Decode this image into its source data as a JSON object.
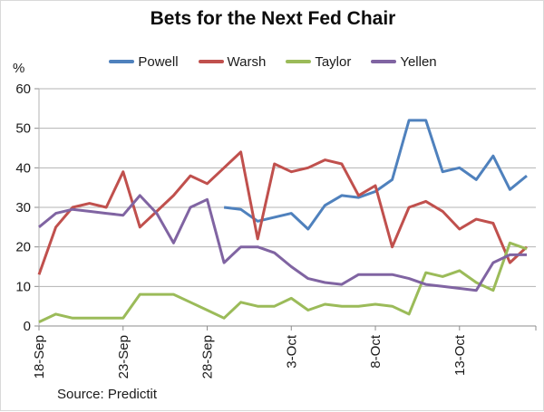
{
  "title": "Bets for the Next Fed Chair",
  "y_axis_unit": "%",
  "source": "Source: Predictit",
  "colors": {
    "grid": "#b3b3b3",
    "axis": "#8c8c8c",
    "text": "#1a1a1a"
  },
  "chart_data": {
    "type": "line",
    "x": [
      "18-Sep",
      "19-Sep",
      "20-Sep",
      "21-Sep",
      "22-Sep",
      "23-Sep",
      "24-Sep",
      "25-Sep",
      "26-Sep",
      "27-Sep",
      "28-Sep",
      "29-Sep",
      "30-Sep",
      "1-Oct",
      "2-Oct",
      "3-Oct",
      "4-Oct",
      "5-Oct",
      "6-Oct",
      "7-Oct",
      "8-Oct",
      "9-Oct",
      "10-Oct",
      "11-Oct",
      "12-Oct",
      "13-Oct",
      "14-Oct",
      "15-Oct",
      "16-Oct",
      "17-Oct"
    ],
    "x_tick_labels": [
      "18-Sep",
      "23-Sep",
      "28-Sep",
      "3-Oct",
      "8-Oct",
      "13-Oct"
    ],
    "x_tick_indices": [
      0,
      5,
      10,
      15,
      20,
      25
    ],
    "y_ticks": [
      0,
      10,
      20,
      30,
      40,
      50,
      60
    ],
    "ylim": [
      0,
      60
    ],
    "grid": true,
    "legend_position": "top",
    "series": [
      {
        "name": "Powell",
        "color": "#4F81BD",
        "values": [
          null,
          null,
          null,
          null,
          null,
          null,
          null,
          null,
          null,
          null,
          null,
          30,
          29.5,
          26.5,
          27.5,
          28.5,
          24.5,
          30.5,
          33,
          32.5,
          34,
          37,
          52,
          52,
          39,
          40,
          37,
          43,
          34.5,
          38
        ]
      },
      {
        "name": "Warsh",
        "color": "#C0504D",
        "values": [
          13,
          25,
          30,
          31,
          30,
          39,
          25,
          29,
          33,
          38,
          36,
          40,
          44,
          22,
          41,
          39,
          40,
          42,
          41,
          33,
          35.5,
          20,
          30,
          31.5,
          29,
          24.5,
          27,
          26,
          16,
          20
        ]
      },
      {
        "name": "Taylor",
        "color": "#9BBB59",
        "values": [
          1,
          3,
          2,
          2,
          2,
          2,
          8,
          8,
          8,
          6,
          4,
          2,
          6,
          5,
          5,
          7,
          4,
          5.5,
          5,
          5,
          5.5,
          5,
          3,
          13.5,
          12.5,
          14,
          11,
          9,
          21,
          19.5
        ]
      },
      {
        "name": "Yellen",
        "color": "#8064A2",
        "values": [
          25,
          28.5,
          29.5,
          29,
          28.5,
          28,
          33,
          28.5,
          21,
          30,
          32,
          16,
          20,
          20,
          18.5,
          15,
          12,
          11,
          10.5,
          13,
          13,
          13,
          12,
          10.5,
          10,
          9.5,
          9,
          16,
          18,
          18
        ]
      }
    ]
  }
}
